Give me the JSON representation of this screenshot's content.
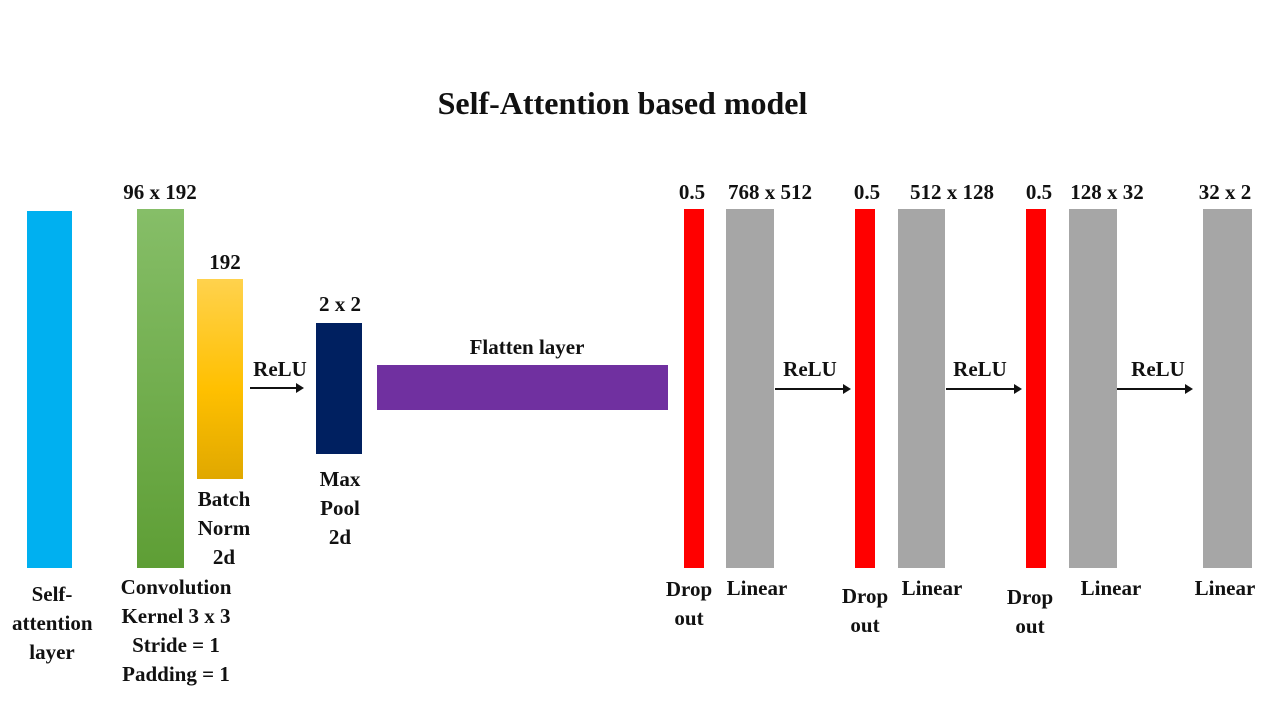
{
  "title": "Self-Attention based model",
  "colors": {
    "self_attention": "#00B0F0",
    "convolution": "#5FA235",
    "batch_norm": "#FFC000",
    "max_pool": "#002060",
    "flatten": "#7030A0",
    "dropout": "#FF0000",
    "linear": "#A6A6A6"
  },
  "labels": {
    "self_attention": [
      "Self-",
      "attention",
      "layer"
    ],
    "convolution": [
      "Convolution",
      "Kernel 3 x 3",
      "Stride = 1",
      "Padding = 1"
    ],
    "conv_dims": "96 x 192",
    "batch_norm": [
      "Batch",
      "Norm",
      "2d"
    ],
    "bn_dims": "192",
    "relu": "ReLU",
    "max_pool": [
      "Max",
      "Pool",
      "2d"
    ],
    "pool_dims": "2 x 2",
    "flatten": "Flatten layer",
    "dropout": [
      "Drop",
      "out"
    ],
    "dropout_rate": "0.5",
    "linear": "Linear",
    "linear_dims": [
      "768 x 512",
      "512 x 128",
      "128 x 32",
      "32 x 2"
    ]
  }
}
